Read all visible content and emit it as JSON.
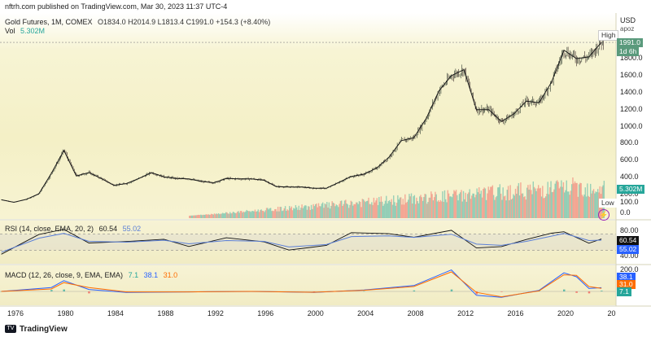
{
  "header": {
    "published": "nftrh.com published on TradingView.com, Mar 30, 2023 11:37 UTC-4"
  },
  "legend": {
    "symbol": "Gold Futures, 1M, COMEX",
    "ohlc": "O1834.0  H2014.9  L1813.4  C1991.0  +154.3 (+8.40%)",
    "vol_label": "Vol",
    "vol_value": "5.302M",
    "rsi_label": "RSI (14, close, EMA, 20, 2)",
    "rsi_value": "60.54",
    "rsi_ma": "55.02",
    "macd_label": "MACD (12, 26, close, 9, EMA, EMA)",
    "macd_hist": "7.1",
    "macd_macd": "38.1",
    "macd_signal": "31.0"
  },
  "axis": {
    "currency": "USD",
    "unit": "apoz",
    "price_ticks": [
      "1800.0",
      "1600.0",
      "1400.0",
      "1200.0",
      "1000.0",
      "800.0",
      "600.0",
      "400.0",
      "200.0",
      "100.0",
      "0.0"
    ],
    "rsi_ticks": [
      "80.00",
      "40.00"
    ],
    "macd_ticks": [
      "200.0"
    ],
    "tag_price": "1991.0",
    "tag_time": "1d 6h",
    "tag_vol": "5.302M",
    "tag_rsi": "60.54",
    "tag_rsi_ma": "55.02",
    "tag_macd": "38.1",
    "tag_signal": "31.0",
    "tag_hist": "7.1",
    "high_label": "High",
    "low_label": "Low"
  },
  "x_ticks": [
    "1976",
    "1980",
    "1984",
    "1988",
    "1992",
    "1996",
    "2000",
    "2004",
    "2008",
    "2012",
    "2016",
    "2020",
    "20"
  ],
  "footer": {
    "brand": "TradingView"
  },
  "colors": {
    "up": "#26a69a",
    "down": "#ef5350",
    "rsi": "#111111",
    "rsi_ma": "#5b7fd6",
    "macd": "#2962ff",
    "signal": "#ff6d00",
    "price_tag": "#5a9a7c"
  },
  "chart_data": [
    {
      "type": "line",
      "title": "Gold Futures, 1M, COMEX",
      "x": [
        1975,
        1976,
        1977,
        1978,
        1979,
        1980,
        1981,
        1982,
        1983,
        1984,
        1985,
        1986,
        1987,
        1988,
        1989,
        1990,
        1991,
        1992,
        1993,
        1994,
        1995,
        1996,
        1997,
        1998,
        1999,
        2000,
        2001,
        2002,
        2003,
        2004,
        2005,
        2006,
        2007,
        2008,
        2009,
        2010,
        2011,
        2012,
        2013,
        2014,
        2015,
        2016,
        2017,
        2018,
        2019,
        2020,
        2021,
        2022,
        2023
      ],
      "series": [
        {
          "name": "Gold Futures",
          "values": [
            140,
            110,
            145,
            210,
            450,
            720,
            420,
            460,
            390,
            310,
            330,
            390,
            460,
            410,
            390,
            385,
            355,
            340,
            390,
            385,
            385,
            370,
            295,
            290,
            290,
            275,
            275,
            345,
            415,
            440,
            510,
            640,
            835,
            870,
            1100,
            1420,
            1600,
            1670,
            1200,
            1200,
            1060,
            1150,
            1300,
            1280,
            1520,
            1900,
            1800,
            1820,
            1991
          ]
        }
      ],
      "ylim": [
        0,
        2100
      ]
    },
    {
      "type": "line",
      "title": "RSI (14, close, EMA, 20, 2)",
      "x": [
        1975,
        1978,
        1980,
        1982,
        1985,
        1988,
        1990,
        1993,
        1996,
        1998,
        2001,
        2003,
        2006,
        2008,
        2011,
        2013,
        2015,
        2017,
        2019,
        2020,
        2022,
        2023
      ],
      "series": [
        {
          "name": "RSI",
          "values": [
            20,
            72,
            80,
            45,
            50,
            60,
            40,
            58,
            52,
            30,
            45,
            72,
            70,
            60,
            78,
            38,
            40,
            55,
            72,
            78,
            50,
            60.54
          ]
        },
        {
          "name": "EMA",
          "values": [
            25,
            60,
            72,
            52,
            50,
            55,
            46,
            54,
            52,
            38,
            44,
            64,
            66,
            62,
            70,
            45,
            42,
            52,
            65,
            72,
            54,
            55.02
          ]
        }
      ],
      "ylim": [
        0,
        100
      ]
    },
    {
      "type": "line",
      "title": "MACD (12, 26, close, 9, EMA, EMA)",
      "x": [
        1975,
        1979,
        1980,
        1982,
        1985,
        1990,
        1995,
        2000,
        2004,
        2008,
        2011,
        2013,
        2015,
        2018,
        2020,
        2021,
        2022,
        2023
      ],
      "series": [
        {
          "name": "MACD",
          "values": [
            0,
            40,
            110,
            20,
            -10,
            -5,
            0,
            -10,
            15,
            60,
            220,
            -40,
            -60,
            10,
            190,
            150,
            30,
            38.1
          ]
        },
        {
          "name": "Signal",
          "values": [
            0,
            25,
            90,
            40,
            -5,
            -5,
            0,
            -8,
            12,
            50,
            200,
            -10,
            -55,
            5,
            170,
            165,
            50,
            31.0
          ]
        },
        {
          "name": "Histogram",
          "values": [
            0,
            15,
            20,
            -20,
            -5,
            0,
            0,
            -2,
            3,
            10,
            20,
            -30,
            -5,
            5,
            20,
            -15,
            -20,
            7.1
          ]
        }
      ]
    }
  ]
}
